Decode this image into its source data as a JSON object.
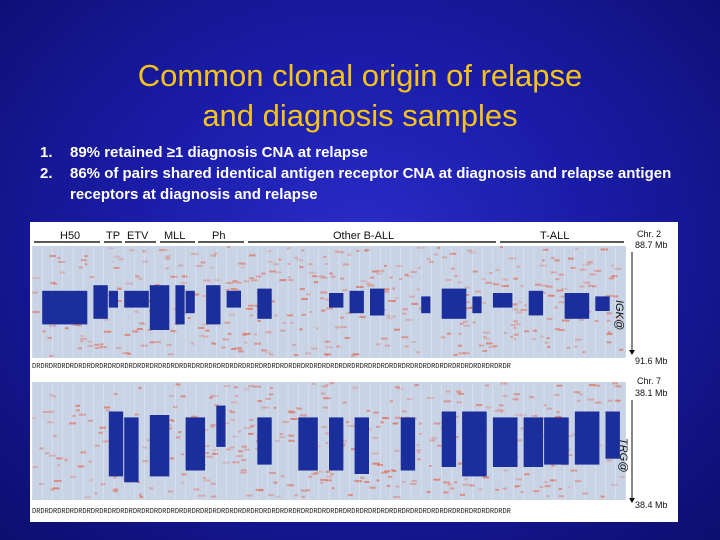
{
  "slide": {
    "title_line1": "Common clonal origin of relapse",
    "title_line2": "and diagnosis samples",
    "points": [
      {
        "num": "1.",
        "text": "89% retained ≥1 diagnosis CNA at relapse"
      },
      {
        "num": "2.",
        "text": "86% of pairs shared identical antigen receptor CNA at diagnosis and relapse antigen receptors at diagnosis and relapse"
      }
    ]
  },
  "figure": {
    "groups": [
      "H50",
      "TP",
      "ETV",
      "MLL",
      "Ph",
      "Other B-ALL",
      "T-ALL"
    ],
    "sample_row": "DRDRDRDRDRDRDRDRDRDRDRDRDRDRDRDRDRDRDRDRDRDRDRDRDRDRDRDRDRDRDRDRDRDRDRDRDRDRDRDRDRDRDRDRDRDRDRDRDRDRDRDRDRDRDRDRDR",
    "panel1": {
      "chr": "Chr. 2",
      "start": "88.7 Mb",
      "gene": "IGK@",
      "end": "91.6 Mb"
    },
    "panel2": {
      "chr": "Chr. 7",
      "start": "38.1 Mb",
      "gene": "TRG@",
      "end": "38.4 Mb"
    },
    "colors": {
      "loss": "#1a2e9c",
      "gain": "#e06a52",
      "neutral": "#c9d3e6"
    }
  }
}
